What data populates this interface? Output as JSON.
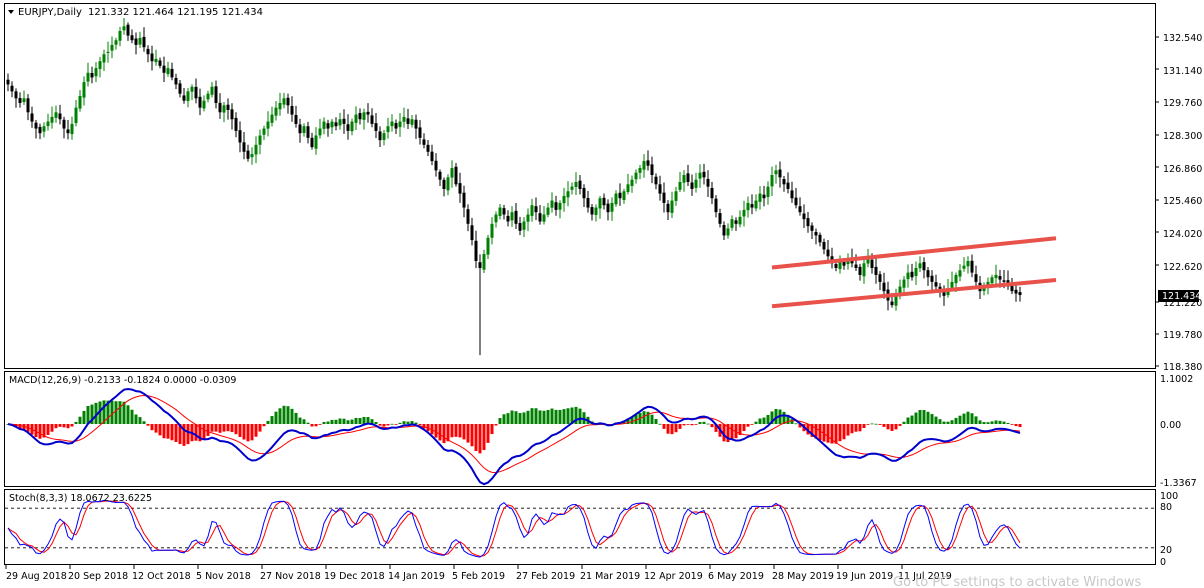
{
  "header": {
    "symbol": "EURJPY,Daily",
    "ohlc": "121.332 121.464 121.195 121.434"
  },
  "price_axis": {
    "ticks": [
      "132.540",
      "131.140",
      "129.760",
      "128.300",
      "126.860",
      "125.460",
      "124.020",
      "122.620",
      "121.220",
      "119.780",
      "118.380"
    ],
    "current_label": "121.434"
  },
  "macd": {
    "label": "MACD(12,26,9) -0.2133 -0.1824 0.0000 -0.0309",
    "ticks": [
      "1.1002",
      "0.00",
      "-1.3367"
    ]
  },
  "stoch": {
    "label": "Stoch(8,3,3) 18.0672 23.6225",
    "ticks": [
      "100",
      "80",
      "20",
      "0"
    ]
  },
  "time_axis": {
    "labels": [
      "29 Aug 2018",
      "20 Sep 2018",
      "12 Oct 2018",
      "5 Nov 2018",
      "27 Nov 2018",
      "19 Dec 2018",
      "14 Jan 2019",
      "5 Feb 2019",
      "27 Feb 2019",
      "21 Mar 2019",
      "12 Apr 2019",
      "6 May 2019",
      "28 May 2019",
      "19 Jun 2019",
      "11 Jul 2019"
    ]
  },
  "watermark": "Go to PC settings to activate Windows",
  "colors": {
    "bull": "#008000",
    "bear": "#000000",
    "macd_pos": "#008000",
    "macd_neg": "#ff0000",
    "macd_line": "#0000cc",
    "signal_line": "#ff0000",
    "stoch_main": "#0000ff",
    "stoch_signal": "#ff0000",
    "channel": "#e8524a"
  },
  "chart_data": {
    "type": "candlestick",
    "symbol": "EURJPY",
    "timeframe": "Daily",
    "x_labels": [
      "29 Aug 2018",
      "20 Sep 2018",
      "12 Oct 2018",
      "5 Nov 2018",
      "27 Nov 2018",
      "19 Dec 2018",
      "14 Jan 2019",
      "5 Feb 2019",
      "27 Feb 2019",
      "21 Mar 2019",
      "12 Apr 2019",
      "6 May 2019",
      "28 May 2019",
      "19 Jun 2019",
      "11 Jul 2019"
    ],
    "ylim": [
      118.38,
      133.5
    ],
    "bars_per_label": 16,
    "closes": [
      130.5,
      130.2,
      129.9,
      129.7,
      129.9,
      129.3,
      128.9,
      128.6,
      128.4,
      128.7,
      128.9,
      129.1,
      129.3,
      129.0,
      128.6,
      128.4,
      128.8,
      129.5,
      130.0,
      130.6,
      131.0,
      130.8,
      131.2,
      131.5,
      131.8,
      131.9,
      132.2,
      132.4,
      132.8,
      133.0,
      132.6,
      132.4,
      132.2,
      132.5,
      132.1,
      131.8,
      131.5,
      131.6,
      131.3,
      131.0,
      131.2,
      130.8,
      130.5,
      130.1,
      129.8,
      130.2,
      130.4,
      129.9,
      129.5,
      129.8,
      130.1,
      130.4,
      129.7,
      129.3,
      129.6,
      129.4,
      129.0,
      128.5,
      128.0,
      127.6,
      127.3,
      127.5,
      127.9,
      128.3,
      128.6,
      128.9,
      129.2,
      129.5,
      129.7,
      129.9,
      129.6,
      129.2,
      128.8,
      128.4,
      128.7,
      128.2,
      127.8,
      128.3,
      128.6,
      128.9,
      128.6,
      128.9,
      128.7,
      129.0,
      128.8,
      128.5,
      128.9,
      129.2,
      129.0,
      129.3,
      129.2,
      128.8,
      128.5,
      128.1,
      128.4,
      128.7,
      128.9,
      128.6,
      128.9,
      129.1,
      128.8,
      129.0,
      128.6,
      128.2,
      127.9,
      127.6,
      127.2,
      126.8,
      126.4,
      126.0,
      126.5,
      126.9,
      126.2,
      125.8,
      125.2,
      124.5,
      123.8,
      122.9,
      122.6,
      123.2,
      123.9,
      124.5,
      124.9,
      125.2,
      124.9,
      124.6,
      125.0,
      124.5,
      124.2,
      124.6,
      124.9,
      125.3,
      125.0,
      124.6,
      124.9,
      125.2,
      125.5,
      125.1,
      125.4,
      125.7,
      125.9,
      126.1,
      126.3,
      126.0,
      125.6,
      125.2,
      124.9,
      125.2,
      125.6,
      125.3,
      125.0,
      125.4,
      125.8,
      125.6,
      125.9,
      126.2,
      126.4,
      126.7,
      126.9,
      127.2,
      127.0,
      126.6,
      126.2,
      125.8,
      125.4,
      125.0,
      125.5,
      125.9,
      126.3,
      126.6,
      126.3,
      126.0,
      126.4,
      126.7,
      126.5,
      126.1,
      125.6,
      125.0,
      124.5,
      124.0,
      124.3,
      124.7,
      124.5,
      124.8,
      125.1,
      125.4,
      125.2,
      125.5,
      125.8,
      125.6,
      126.1,
      126.6,
      126.8,
      126.5,
      126.2,
      126.0,
      125.6,
      125.3,
      125.0,
      124.7,
      124.4,
      124.2,
      124.0,
      123.7,
      123.4,
      123.1,
      122.8,
      122.6,
      122.9,
      122.7,
      123.0,
      122.8,
      122.6,
      122.3,
      122.8,
      123.0,
      122.6,
      122.3,
      122.0,
      121.6,
      121.2,
      121.0,
      121.4,
      121.8,
      122.1,
      122.4,
      122.2,
      122.6,
      122.8,
      122.5,
      122.2,
      122.0,
      121.8,
      121.6,
      121.4,
      121.7,
      122.0,
      122.3,
      122.5,
      122.7,
      122.9,
      122.4,
      122.0,
      121.6,
      121.8,
      122.0,
      122.2,
      122.3,
      122.1,
      122.0,
      121.8,
      121.6,
      121.5,
      121.434
    ],
    "channel_upper": {
      "from": {
        "x": "24 May 2019",
        "y": 122.62
      },
      "to": {
        "x": "30 Jul 2019",
        "y": 123.88
      }
    },
    "channel_lower": {
      "from": {
        "x": "24 May 2019",
        "y": 120.95
      },
      "to": {
        "x": "30 Jul 2019",
        "y": 122.08
      }
    },
    "indicators": [
      {
        "name": "MACD(12,26,9)",
        "values": [
          -0.2133,
          -0.1824,
          0.0,
          -0.0309
        ],
        "ylim": [
          -1.3367,
          1.1002
        ]
      },
      {
        "name": "Stoch(8,3,3)",
        "values": [
          18.0672,
          23.6225
        ],
        "levels": [
          20,
          80
        ],
        "ylim": [
          0,
          100
        ]
      }
    ]
  }
}
